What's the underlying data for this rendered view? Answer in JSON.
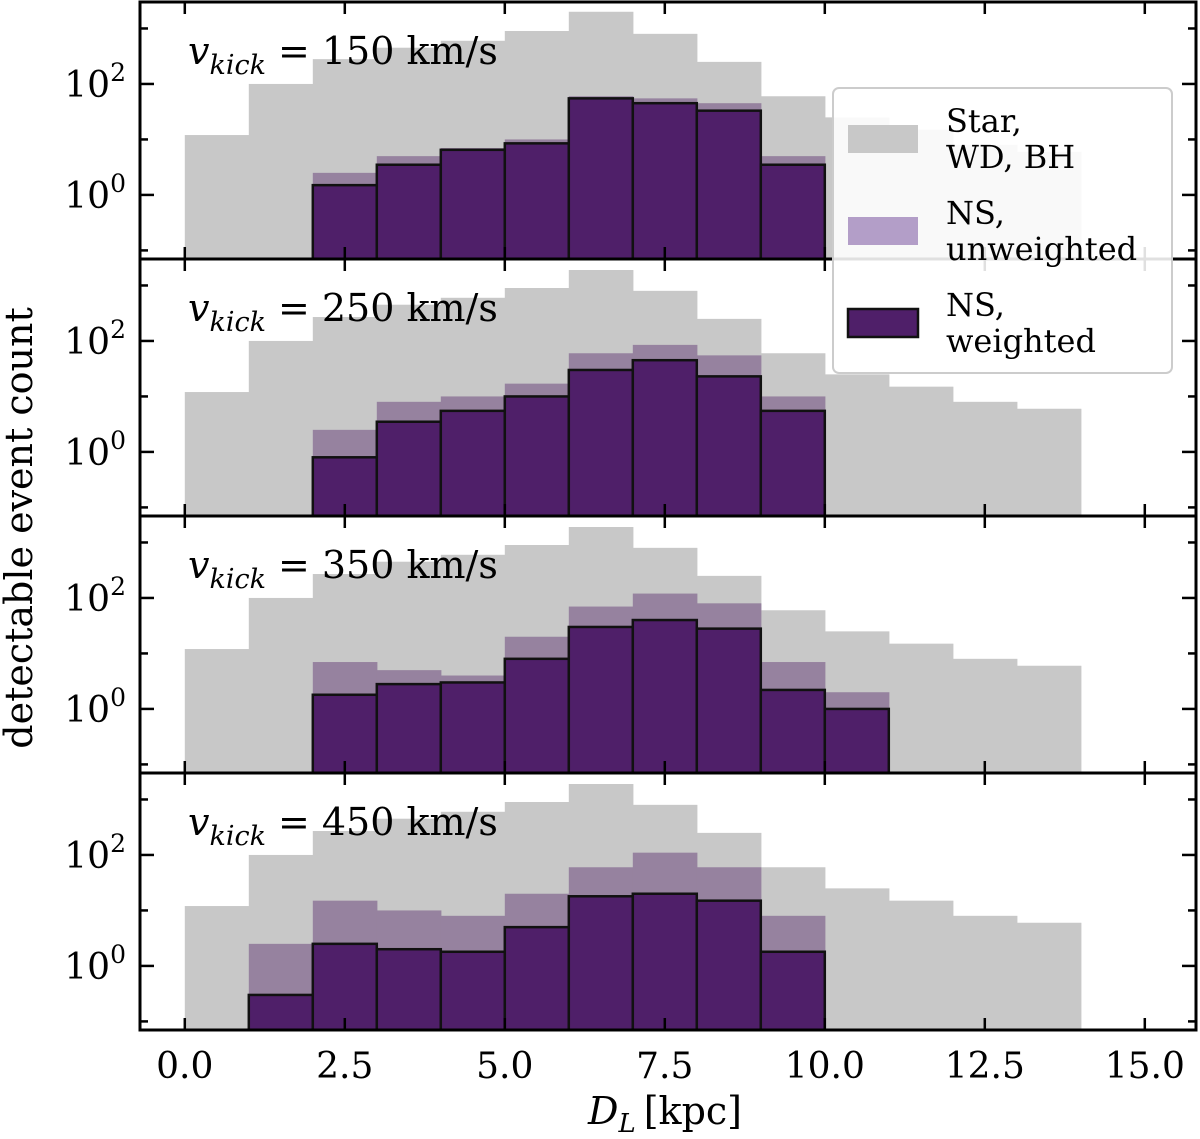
{
  "chart_data": {
    "type": "bar",
    "subtype": "stacked-panel step histogram",
    "xlabel_main": "D",
    "xlabel_sub": "L",
    "xlabel_unit": "[kpc]",
    "ylabel": "detectable event count",
    "x_ticks": [
      "0.0",
      "2.5",
      "5.0",
      "7.5",
      "10.0",
      "12.5",
      "15.0"
    ],
    "x_tick_values": [
      0,
      2.5,
      5,
      7.5,
      10,
      12.5,
      15
    ],
    "xlim": [
      -0.7,
      15.8
    ],
    "y_scale": "log",
    "ylim": [
      0.07,
      3000
    ],
    "y_tick_base": "10",
    "y_ticks": [
      {
        "value": 1,
        "exponent": "0"
      },
      {
        "value": 100,
        "exponent": "2"
      }
    ],
    "bin_edges": [
      0,
      1,
      2,
      3,
      4,
      5,
      6,
      7,
      8,
      9,
      10,
      11,
      12,
      13,
      14
    ],
    "colors": {
      "star": "#c8c8c8",
      "ns_unweighted": "#96829f",
      "ns_weighted": "#4f1f69",
      "ns_unweighted_legend": "#b39ec8",
      "edge": "#111111"
    },
    "legend": {
      "placement": "upper-right of top panel",
      "entries": [
        {
          "key": "star",
          "line1": "Star,",
          "line2": "WD, BH"
        },
        {
          "key": "ns_unweighted",
          "line1": "NS,",
          "line2": "unweighted"
        },
        {
          "key": "ns_weighted",
          "line1": "NS,",
          "line2": "weighted"
        }
      ]
    },
    "panels": [
      {
        "label_var": "v",
        "label_sub": "kick",
        "label_value": "= 150 km/s",
        "star": [
          12,
          100,
          280,
          450,
          600,
          900,
          2000,
          800,
          250,
          60,
          25,
          15,
          8,
          6
        ],
        "ns_unweighted": [
          0,
          0,
          2.5,
          5,
          7,
          10,
          60,
          55,
          45,
          5,
          0,
          0,
          0,
          0
        ],
        "ns_weighted": [
          0,
          0,
          1.5,
          3.5,
          6.5,
          8.5,
          55,
          45,
          33,
          3.5,
          0,
          0,
          0,
          0
        ]
      },
      {
        "label_var": "v",
        "label_sub": "kick",
        "label_value": "= 250 km/s",
        "star": [
          12,
          100,
          270,
          450,
          600,
          900,
          1900,
          800,
          250,
          60,
          25,
          15,
          8,
          6
        ],
        "ns_unweighted": [
          0,
          0,
          2.5,
          8,
          10,
          17,
          60,
          85,
          55,
          10,
          0,
          0,
          0,
          0
        ],
        "ns_weighted": [
          0,
          0,
          0.8,
          3.5,
          5.5,
          10,
          30,
          45,
          23,
          5.5,
          0,
          0,
          0,
          0
        ]
      },
      {
        "label_var": "v",
        "label_sub": "kick",
        "label_value": "= 350 km/s",
        "star": [
          12,
          100,
          270,
          450,
          600,
          900,
          1900,
          800,
          250,
          60,
          25,
          15,
          8,
          6
        ],
        "ns_unweighted": [
          0,
          0,
          7,
          5,
          4,
          20,
          70,
          120,
          80,
          7,
          2,
          0,
          0,
          0
        ],
        "ns_weighted": [
          0,
          0,
          1.8,
          2.8,
          3,
          8,
          30,
          40,
          28,
          2.2,
          1,
          0,
          0,
          0
        ]
      },
      {
        "label_var": "v",
        "label_sub": "kick",
        "label_value": "= 450 km/s",
        "star": [
          12,
          100,
          270,
          450,
          600,
          900,
          1900,
          800,
          250,
          60,
          25,
          15,
          8,
          6
        ],
        "ns_unweighted": [
          0,
          2.5,
          15,
          10,
          8,
          20,
          60,
          110,
          60,
          8,
          0,
          0,
          0,
          0
        ],
        "ns_weighted": [
          0,
          0.3,
          2.5,
          2,
          1.8,
          5,
          18,
          20,
          15,
          1.8,
          0,
          0,
          0,
          0
        ]
      }
    ]
  }
}
